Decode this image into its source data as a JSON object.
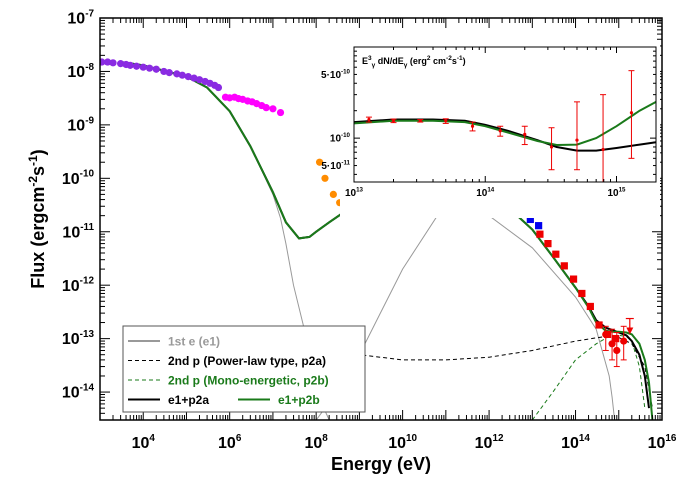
{
  "chart_data": [
    {
      "type": "scatter",
      "xlabel": "Energy (eV)",
      "ylabel": "Flux (ergcm-2s-1)",
      "xscale": "log",
      "yscale": "log",
      "xlim": [
        1000.0,
        1e+16
      ],
      "ylim": [
        3e-15,
        1e-07
      ],
      "x_ticks": [
        {
          "value": 10000.0,
          "label": "10^4"
        },
        {
          "value": 1000000.0,
          "label": "10^6"
        },
        {
          "value": 100000000.0,
          "label": "10^8"
        },
        {
          "value": 10000000000.0,
          "label": "10^10"
        },
        {
          "value": 1000000000000.0,
          "label": "10^12"
        },
        {
          "value": 100000000000000.0,
          "label": "10^14"
        },
        {
          "value": 1e+16,
          "label": "10^16"
        }
      ],
      "y_ticks": [
        {
          "value": 1e-07,
          "label": "10^-7"
        },
        {
          "value": 1e-08,
          "label": "10^-8"
        },
        {
          "value": 1e-09,
          "label": "10^-9"
        },
        {
          "value": 1e-10,
          "label": "10^-10"
        },
        {
          "value": 1e-11,
          "label": "10^-11"
        },
        {
          "value": 1e-12,
          "label": "10^-12"
        },
        {
          "value": 1e-13,
          "label": "10^-13"
        },
        {
          "value": 1e-14,
          "label": "10^-14"
        }
      ],
      "legend_position": "bottom-left",
      "series": [
        {
          "name": "1st e (e1)",
          "kind": "line",
          "color": "#999999",
          "dash": "solid",
          "x": [
            3000.0,
            10000.0,
            100000.0,
            300000.0,
            1000000.0,
            3000000.0,
            10000000.0,
            15000000.0,
            20000000.0,
            30000000.0,
            60000000.0,
            100000000.0,
            150000000.0,
            200000000.0
          ],
          "y": [
            1.5e-08,
            1.3e-08,
            8e-09,
            5e-09,
            1.8e-09,
            4e-10,
            5e-11,
            1.8e-11,
            6e-12,
            1e-12,
            1e-13,
            1.5e-14,
            5e-15,
            3e-15
          ]
        },
        {
          "name": "1st e (e1)",
          "kind": "line",
          "color": "#999999",
          "dash": "solid",
          "x": [
            100000000.0,
            300000000.0,
            1000000000.0,
            10000000000.0,
            100000000000.0,
            1000000000000.0,
            10000000000000.0,
            100000000000000.0,
            300000000000000.0,
            600000000000000.0,
            700000000000000.0,
            800000000000000.0
          ],
          "y": [
            3e-15,
            1e-14,
            5e-14,
            2e-12,
            3.5e-11,
            2e-11,
            5e-12,
            6e-13,
            1.5e-13,
            2e-14,
            8e-15,
            3e-15
          ]
        },
        {
          "name": "2nd p (Power-law type, p2a)",
          "kind": "line",
          "color": "#000000",
          "dash": "dashed",
          "x": [
            200000000.0,
            1000000000.0,
            10000000000.0,
            100000000000.0,
            1000000000000.0,
            10000000000000.0,
            100000000000000.0,
            500000000000000.0,
            1000000000000000.0,
            2000000000000000.0,
            4000000000000000.0,
            6000000000000000.0
          ],
          "y": [
            8e-14,
            5e-14,
            4e-14,
            4e-14,
            4.5e-14,
            6e-14,
            9e-14,
            1.1e-13,
            1.05e-13,
            8e-14,
            3e-14,
            5e-15
          ]
        },
        {
          "name": "2nd p (Mono-energetic, p2b)",
          "kind": "line",
          "color": "#1a7a1a",
          "dash": "dashed",
          "x": [
            10000000000000.0,
            30000000000000.0,
            100000000000000.0,
            300000000000000.0,
            600000000000000.0,
            1000000000000000.0,
            1500000000000000.0,
            2000000000000000.0,
            3000000000000000.0,
            4000000000000000.0
          ],
          "y": [
            3e-15,
            1e-14,
            4e-14,
            8e-14,
            1.1e-13,
            1.15e-13,
            1.1e-13,
            9e-14,
            3e-14,
            5e-15
          ]
        },
        {
          "name": "e1+p2a",
          "kind": "line",
          "color": "#000000",
          "dash": "solid",
          "x": [
            3000.0,
            10000.0,
            100000.0,
            300000.0,
            1000000.0,
            3000000.0,
            10000000.0,
            20000000.0,
            40000000.0,
            70000000.0,
            100000000.0,
            200000000.0,
            500000000.0,
            1000000000.0,
            3000000000.0,
            10000000000.0,
            30000000000.0,
            100000000000.0,
            300000000000.0,
            1000000000000.0,
            3000000000000.0,
            10000000000000.0,
            30000000000000.0,
            100000000000000.0,
            200000000000000.0,
            300000000000000.0,
            500000000000000.0,
            700000000000000.0,
            1000000000000000.0,
            1500000000000000.0,
            2000000000000000.0,
            3000000000000000.0,
            4000000000000000.0,
            5000000000000000.0
          ],
          "y": [
            1.5e-08,
            1.3e-08,
            8e-09,
            5e-09,
            1.8e-09,
            4e-10,
            5.5e-11,
            1.5e-11,
            7.5e-12,
            8e-12,
            1e-11,
            1.5e-11,
            2.5e-11,
            3.6e-11,
            6e-11,
            1e-10,
            1.25e-10,
            1.2e-10,
            8.8e-11,
            5e-11,
            2.7e-11,
            1.1e-11,
            3.4e-12,
            9e-13,
            4e-13,
            2.2e-13,
            1.6e-13,
            1.45e-13,
            1.3e-13,
            1.15e-13,
            9e-14,
            5e-14,
            2e-14,
            5e-15
          ]
        },
        {
          "name": "e1+p2b",
          "kind": "line",
          "color": "#1a7a1a",
          "dash": "solid",
          "x": [
            3000.0,
            10000.0,
            100000.0,
            300000.0,
            1000000.0,
            3000000.0,
            10000000.0,
            20000000.0,
            40000000.0,
            70000000.0,
            100000000.0,
            200000000.0,
            500000000.0,
            1000000000.0,
            3000000000.0,
            10000000000.0,
            30000000000.0,
            100000000000.0,
            300000000000.0,
            1000000000000.0,
            3000000000000.0,
            10000000000000.0,
            30000000000000.0,
            100000000000000.0,
            200000000000000.0,
            300000000000000.0,
            500000000000000.0,
            700000000000000.0,
            1000000000000000.0,
            1500000000000000.0,
            2000000000000000.0,
            3000000000000000.0,
            4000000000000000.0,
            5000000000000000.0,
            6000000000000000.0
          ],
          "y": [
            1.5e-08,
            1.3e-08,
            8e-09,
            5e-09,
            1.8e-09,
            4e-10,
            5.5e-11,
            1.5e-11,
            7.5e-12,
            8e-12,
            1e-11,
            1.5e-11,
            2.5e-11,
            3.6e-11,
            6e-11,
            1e-10,
            1.25e-10,
            1.2e-10,
            8.8e-11,
            5e-11,
            2.7e-11,
            1.1e-11,
            3.4e-12,
            9e-13,
            3.8e-13,
            2e-13,
            1.4e-13,
            1.35e-13,
            1.35e-13,
            1.3e-13,
            1.2e-13,
            8e-14,
            4e-14,
            1.5e-14,
            3e-15
          ]
        },
        {
          "name": "purple-data",
          "kind": "points",
          "color": "#8a2be2",
          "marker": "circle",
          "x": [
            1100.0,
            1500.0,
            2000.0,
            3000.0,
            4000.0,
            5000.0,
            7000.0,
            10000.0,
            14000.0,
            20000.0,
            30000.0,
            40000.0,
            60000.0,
            80000.0,
            110000.0,
            150000.0,
            200000.0,
            270000.0,
            350000.0,
            450000.0,
            550000.0
          ],
          "y": [
            1.5e-08,
            1.5e-08,
            1.45e-08,
            1.4e-08,
            1.35e-08,
            1.3e-08,
            1.25e-08,
            1.2e-08,
            1.15e-08,
            1.1e-08,
            1e-08,
            9.5e-09,
            9e-09,
            8.5e-09,
            8e-09,
            7.5e-09,
            7e-09,
            6.5e-09,
            6e-09,
            5.5e-09,
            5e-09
          ]
        },
        {
          "name": "magenta-data",
          "kind": "points",
          "color": "#ff00ff",
          "marker": "circle",
          "x": [
            800000.0,
            1000000.0,
            1300000.0,
            1600000.0,
            2000000.0,
            2600000.0,
            3300000.0,
            4200000.0,
            5500000.0,
            7000000.0,
            10000000.0,
            15000000.0
          ],
          "y": [
            3.3e-09,
            3.2e-09,
            3.3e-09,
            3.1e-09,
            3e-09,
            2.8e-09,
            2.7e-09,
            2.5e-09,
            2.3e-09,
            2.1e-09,
            2e-09,
            1.7e-09
          ]
        },
        {
          "name": "orange-data",
          "kind": "points",
          "color": "#ff8c00",
          "marker": "circle",
          "x": [
            120000000.0,
            160000000.0,
            250000000.0,
            350000000.0,
            500000000.0,
            700000000.0,
            1000000000.0,
            1400000000.0,
            2000000000.0,
            2800000000.0,
            4000000000.0,
            5500000000.0,
            7500000000.0,
            10000000000.0,
            14000000000.0,
            20000000000.0,
            28000000000.0,
            40000000000.0,
            55000000000.0,
            80000000000.0,
            110000000000.0,
            150000000000.0,
            200000000000.0
          ],
          "y": [
            2e-10,
            1e-10,
            5e-11,
            3.5e-11,
            4e-11,
            4.5e-11,
            5e-11,
            5e-11,
            6e-11,
            6.5e-11,
            7e-11,
            8e-11,
            8.5e-11,
            9e-11,
            1e-10,
            1.1e-10,
            1.1e-10,
            1.15e-10,
            1.2e-10,
            1.2e-10,
            1.1e-10,
            1.05e-10,
            9.5e-11
          ],
          "yerr_x": [
            100000000000.0,
            140000000000.0
          ],
          "yerr_lo": [
            7e-11,
            8e-11
          ],
          "yerr_hi": [
            1.4e-10,
            1.5e-10
          ]
        },
        {
          "name": "blue-data",
          "kind": "points",
          "color": "#0000ee",
          "marker": "square",
          "x": [
            300000000000.0,
            500000000000.0,
            800000000000.0,
            1300000000000.0,
            2000000000000.0,
            3500000000000.0,
            5500000000000.0,
            9000000000000.0,
            14000000000000.0
          ],
          "y": [
            9e-11,
            8e-11,
            6.5e-11,
            5e-11,
            4e-11,
            3e-11,
            2.3e-11,
            1.7e-11,
            1.3e-11
          ]
        },
        {
          "name": "red-data",
          "kind": "points",
          "color": "#ee0000",
          "marker": "square",
          "x": [
            15000000000000.0,
            23000000000000.0,
            35000000000000.0,
            55000000000000.0,
            90000000000000.0,
            140000000000000.0,
            220000000000000.0,
            350000000000000.0,
            550000000000000.0,
            850000000000000.0
          ],
          "y": [
            9e-12,
            6e-12,
            3.8e-12,
            2.3e-12,
            1.3e-12,
            7e-13,
            4e-13,
            1.8e-13,
            1.2e-13,
            1e-13
          ]
        },
        {
          "name": "red-errorbars",
          "kind": "points",
          "color": "#ee0000",
          "marker": "circle",
          "x": [
            500000000000000.0,
            700000000000000.0,
            900000000000000.0,
            1300000000000000.0
          ],
          "y": [
            1.2e-13,
            8e-14,
            6e-14,
            9e-14
          ],
          "yerr_lo": [
            6e-14,
            4e-14,
            3e-14,
            4e-14
          ],
          "yerr_hi": [
            1.7e-13,
            1.5e-13,
            1.3e-13,
            1.7e-13
          ]
        },
        {
          "name": "upper-limit",
          "kind": "arrow",
          "color": "#ee0000",
          "x": [
            1800000000000000.0
          ],
          "y": [
            1.3e-13
          ]
        }
      ]
    },
    {
      "type": "scatter",
      "role": "inset",
      "title": "E³ dN/dE (erg² cm⁻²s⁻¹)",
      "xscale": "log",
      "yscale": "log",
      "xlim": [
        10000000000000.0,
        2000000000000000.0
      ],
      "ylim": [
        3.3e-11,
        1e-09
      ],
      "x_ticks": [
        {
          "value": 10000000000000.0,
          "label": "10^13"
        },
        {
          "value": 100000000000000.0,
          "label": "10^14"
        },
        {
          "value": 1000000000000000.0,
          "label": "10^15"
        }
      ],
      "y_ticks": [
        {
          "value": 5e-10,
          "label": "5·10^-10"
        },
        {
          "value": 1e-10,
          "label": "10^-10"
        },
        {
          "value": 5e-11,
          "label": "5·10^-11"
        }
      ],
      "series": [
        {
          "name": "e1+p2a",
          "kind": "line",
          "color": "#000000",
          "dash": "solid",
          "x": [
            10000000000000.0,
            20000000000000.0,
            40000000000000.0,
            70000000000000.0,
            100000000000000.0,
            150000000000000.0,
            250000000000000.0,
            350000000000000.0,
            500000000000000.0,
            700000000000000.0,
            1000000000000000.0,
            1500000000000000.0,
            2000000000000000.0
          ],
          "y": [
            1.5e-10,
            1.6e-10,
            1.6e-10,
            1.55e-10,
            1.4e-10,
            1.2e-10,
            9.5e-11,
            8e-11,
            7.3e-11,
            7.3e-11,
            7.8e-11,
            8.5e-11,
            9e-11
          ]
        },
        {
          "name": "e1+p2b",
          "kind": "line",
          "color": "#1a7a1a",
          "dash": "solid",
          "x": [
            10000000000000.0,
            20000000000000.0,
            40000000000000.0,
            70000000000000.0,
            100000000000000.0,
            150000000000000.0,
            250000000000000.0,
            350000000000000.0,
            500000000000000.0,
            700000000000000.0,
            1000000000000000.0,
            1500000000000000.0,
            2000000000000000.0
          ],
          "y": [
            1.45e-10,
            1.55e-10,
            1.55e-10,
            1.5e-10,
            1.35e-10,
            1.15e-10,
            9.3e-11,
            8.4e-11,
            8.5e-11,
            1e-10,
            1.35e-10,
            2e-10,
            2.5e-10
          ]
        },
        {
          "name": "inset-data",
          "kind": "points",
          "color": "#ee0000",
          "marker": "circle",
          "x": [
            13000000000000.0,
            20000000000000.0,
            32000000000000.0,
            50000000000000.0,
            80000000000000.0,
            130000000000000.0,
            200000000000000.0,
            320000000000000.0,
            500000000000000.0,
            790000000000000.0,
            1300000000000000.0
          ],
          "y": [
            1.6e-10,
            1.55e-10,
            1.55e-10,
            1.55e-10,
            1.35e-10,
            1.2e-10,
            1.1e-10,
            8e-11,
            9.5e-11,
            7.5e-11,
            1.9e-10
          ],
          "yerr_lo": [
            1.5e-10,
            1.48e-10,
            1.5e-10,
            1.45e-10,
            1.2e-10,
            1.05e-10,
            8.5e-11,
            4.5e-11,
            4.5e-11,
            3.3e-11,
            6e-11
          ],
          "yerr_hi": [
            1.7e-10,
            1.62e-10,
            1.6e-10,
            1.63e-10,
            1.5e-10,
            1.35e-10,
            1.35e-10,
            1.3e-10,
            2.5e-10,
            3e-10,
            5.5e-10
          ]
        }
      ]
    }
  ],
  "legend": {
    "entries": [
      {
        "label": "1st e (e1)",
        "color": "#999999",
        "dash": "solid",
        "text_color": "#999999"
      },
      {
        "label": "2nd p (Power-law type, p2a)",
        "color": "#000000",
        "dash": "dashed",
        "text_color": "#000000"
      },
      {
        "label": "2nd p (Mono-energetic, p2b)",
        "color": "#1a7a1a",
        "dash": "dashed",
        "text_color": "#1a7a1a"
      },
      {
        "label": "e1+p2a",
        "color": "#000000",
        "dash": "solid",
        "text_color": "#000000"
      },
      {
        "label": "e1+p2b",
        "color": "#1a7a1a",
        "dash": "solid",
        "text_color": "#1a7a1a"
      }
    ]
  }
}
